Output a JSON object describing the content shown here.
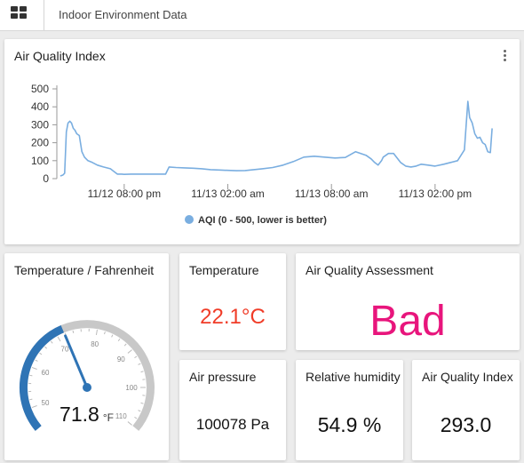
{
  "topbar": {
    "title": "Indoor Environment Data"
  },
  "aqi_chart": {
    "title": "Air Quality Index",
    "legend": "AQI (0 - 500, lower is better)"
  },
  "colors": {
    "line": "#7aaee0",
    "gauge_arc": "#2f74b5",
    "gauge_track": "#c8c8c8",
    "gauge_needle": "#2f74b5",
    "temperature_value": "#f03c28",
    "assessment_value": "#e8157c"
  },
  "chart_data": {
    "type": "line",
    "title": "Air Quality Index",
    "xlabel": "",
    "ylabel": "",
    "ylim": [
      0,
      500
    ],
    "yticks": [
      0,
      100,
      200,
      300,
      400,
      500
    ],
    "xticks": [
      "11/12 08:00 pm",
      "11/13 02:00 am",
      "11/13 08:00 am",
      "11/13 02:00 pm"
    ],
    "grid": false,
    "legend_position": "bottom",
    "series": [
      {
        "name": "AQI (0 - 500, lower is better)",
        "x_hours": [
          -3.7,
          -3.55,
          -3.45,
          -3.35,
          -3.25,
          -3.15,
          -3.05,
          -2.95,
          -2.85,
          -2.75,
          -2.6,
          -2.45,
          -2.3,
          -2.1,
          -1.85,
          -1.55,
          -1.2,
          -0.8,
          -0.4,
          -0.15,
          0,
          0.4,
          0.8,
          1.2,
          1.6,
          2.0,
          2.4,
          2.6,
          3.0,
          3.5,
          4.0,
          4.5,
          5.0,
          5.5,
          6.0,
          6.5,
          7.0,
          7.5,
          8.0,
          8.6,
          9.2,
          9.8,
          10.4,
          11.0,
          11.6,
          12.2,
          12.8,
          13.4,
          14.0,
          14.3,
          14.5,
          14.7,
          14.9,
          15.0,
          15.3,
          15.6,
          16.0,
          16.3,
          16.6,
          16.9,
          17.2,
          17.6,
          18.0,
          18.5,
          18.9,
          19.3,
          19.5,
          19.7,
          19.8,
          19.9,
          20.0,
          20.15,
          20.3,
          20.45,
          20.6,
          20.75,
          20.9,
          21.05,
          21.2,
          21.3
        ],
        "values": [
          15,
          20,
          30,
          260,
          310,
          320,
          310,
          280,
          270,
          250,
          240,
          150,
          120,
          100,
          90,
          75,
          65,
          55,
          25,
          25,
          24,
          25,
          25,
          25,
          25,
          25,
          25,
          65,
          62,
          60,
          58,
          55,
          50,
          48,
          46,
          44,
          45,
          50,
          55,
          62,
          75,
          95,
          120,
          125,
          120,
          115,
          118,
          150,
          130,
          110,
          90,
          75,
          100,
          120,
          140,
          140,
          90,
          70,
          65,
          70,
          80,
          75,
          70,
          80,
          90,
          100,
          130,
          160,
          300,
          430,
          340,
          310,
          250,
          225,
          230,
          200,
          190,
          150,
          145,
          280
        ]
      }
    ]
  },
  "temp_f": {
    "title": "Temperature / Fahrenheit",
    "value": "71.8",
    "unit": "°F",
    "numeric_value": 71.8,
    "min": 45,
    "max": 110,
    "tick_labels": [
      "50",
      "60",
      "70",
      "80",
      "90",
      "100",
      "110"
    ]
  },
  "temperature": {
    "title": "Temperature",
    "value": "22.1",
    "unit": "°C"
  },
  "assessment": {
    "title": "Air Quality Assessment",
    "value": "Bad"
  },
  "pressure": {
    "title": "Air pressure",
    "value": "100078 Pa"
  },
  "humidity": {
    "title": "Relative humidity",
    "value": "54.9 %"
  },
  "aqi_value": {
    "title": "Air Quality Index",
    "value": "293.0"
  }
}
